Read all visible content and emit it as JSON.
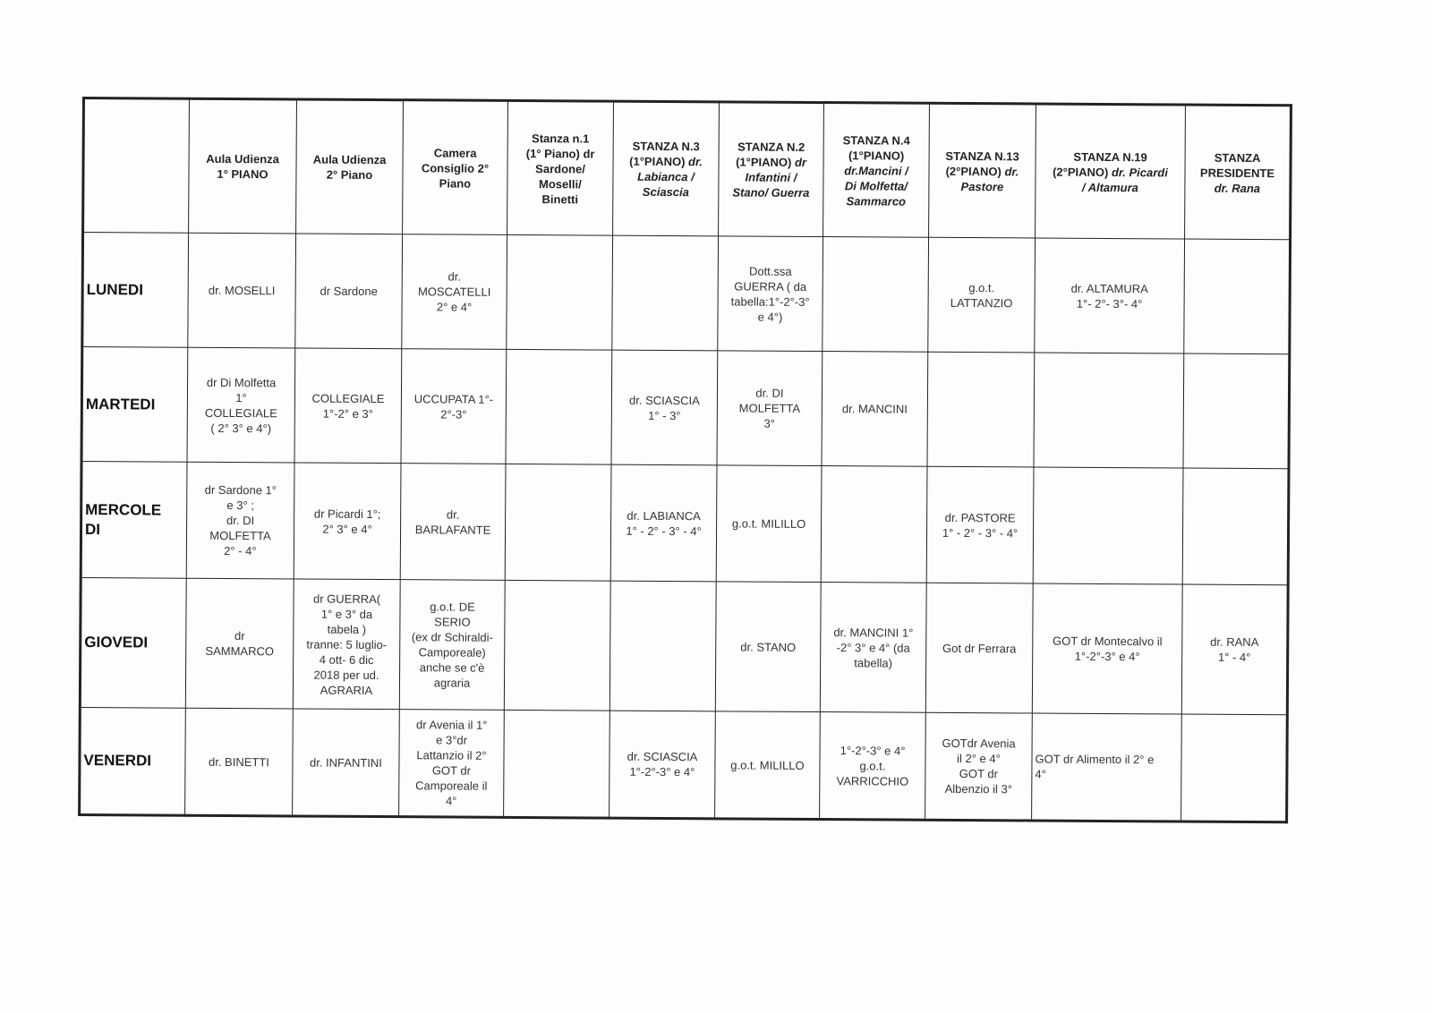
{
  "table": {
    "headers": [
      {
        "main": "",
        "italic": ""
      },
      {
        "main": "Aula Udienza\n1° PIANO",
        "italic": ""
      },
      {
        "main": "Aula Udienza\n2° Piano",
        "italic": ""
      },
      {
        "main": "Camera\nConsiglio 2°\nPiano",
        "italic": ""
      },
      {
        "main": "Stanza n.1\n(1° Piano) dr\nSardone/\nMoselli/\nBinetti",
        "italic": ""
      },
      {
        "main": "STANZA N.3\n(1°PIANO)",
        "italic": " dr.\nLabianca /\nSciascia"
      },
      {
        "main": "STANZA N.2\n(1°PIANO)",
        "italic": " dr\nInfantini /\nStano/ Guerra"
      },
      {
        "main": "STANZA N.4\n(1°PIANO)",
        "italic": "\ndr.Mancini /\nDi Molfetta/\nSammarco"
      },
      {
        "main": "STANZA N.13\n(2°PIANO)",
        "italic": " dr.\nPastore"
      },
      {
        "main": "STANZA N.19\n(2°PIANO)",
        "italic": " dr. Picardi\n/ Altamura"
      },
      {
        "main": "STANZA\nPRESIDENTE",
        "italic": "\ndr. Rana"
      }
    ],
    "rows": [
      {
        "day": "LUNEDI",
        "cells": [
          "dr. MOSELLI",
          "dr Sardone",
          "dr.\nMOSCATELLI\n2° e 4°",
          "",
          "",
          "Dott.ssa\nGUERRA ( da\ntabella:1°-2°-3°\ne 4°)",
          "",
          "g.o.t.\nLATTANZIO",
          "dr. ALTAMURA\n1°- 2°- 3°- 4°",
          ""
        ]
      },
      {
        "day": "MARTEDI",
        "cells": [
          "dr Di Molfetta\n1°\nCOLLEGIALE\n( 2° 3° e 4°)",
          "COLLEGIALE\n1°-2° e 3°",
          "UCCUPATA 1°-\n2°-3°",
          "",
          "dr. SCIASCIA\n1° - 3°",
          "dr. DI\nMOLFETTA\n3°",
          "dr. MANCINI",
          "",
          "",
          ""
        ]
      },
      {
        "day": "MERCOLE\nDI",
        "cells": [
          "dr Sardone 1°\ne 3° ;\ndr. DI\nMOLFETTA\n2° - 4°",
          "dr Picardi 1°;\n2° 3° e 4°",
          "dr.\nBARLAFANTE",
          "",
          "dr. LABIANCA\n1° - 2° - 3° - 4°",
          "g.o.t. MILILLO",
          "",
          "dr. PASTORE\n1° - 2° - 3° - 4°",
          "",
          ""
        ]
      },
      {
        "day": "GIOVEDI",
        "cells": [
          "dr\nSAMMARCO",
          "dr GUERRA(\n1° e 3° da\ntabela )\ntranne: 5 luglio-\n4 ott-   6 dic\n2018 per ud.\nAGRARIA",
          "g.o.t. DE\nSERIO\n(ex dr Schiraldi-\nCamporeale)\nanche se c'è\nagraria",
          "",
          "",
          "dr. STANO",
          "dr. MANCINI 1°\n-2° 3° e 4° (da\ntabella)",
          "Got dr Ferrara",
          "GOT dr Montecalvo il\n1°-2°-3° e 4°",
          "dr. RANA\n1° - 4°"
        ]
      },
      {
        "day": "VENERDI",
        "cells": [
          "dr. BINETTI",
          "dr. INFANTINI",
          "dr Avenia il 1°\ne 3°dr\nLattanzio il 2°\nGOT dr\nCamporeale il\n4°",
          "",
          "dr. SCIASCIA\n1°-2°-3° e 4°",
          "g.o.t. MILILLO",
          "1°-2°-3° e 4°\ng.o.t.\nVARRICCHIO",
          "GOTdr Avenia\nil 2° e 4°\nGOT dr\nAlbenzio il 3°",
          "GOT dr Alimento il 2° e\n4°",
          ""
        ]
      }
    ]
  }
}
